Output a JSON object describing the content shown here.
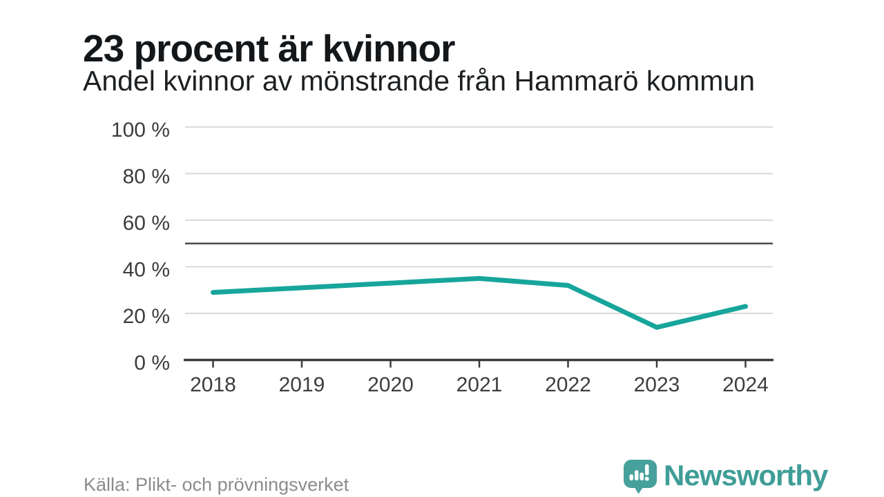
{
  "header": {
    "title": "23 procent är kvinnor",
    "subtitle": "Andel kvinnor av mönstrande från Hammarö kommun"
  },
  "chart_data": {
    "type": "line",
    "title": "23 procent är kvinnor",
    "subtitle": "Andel kvinnor av mönstrande från Hammarö kommun",
    "x_tick_labels": [
      "2018",
      "2019",
      "2020",
      "2021",
      "2022",
      "2023",
      "2024"
    ],
    "values": [
      29,
      31,
      33,
      35,
      32,
      14,
      23
    ],
    "unit": "%",
    "ylim": [
      0,
      100
    ],
    "y_ticks": [
      0,
      20,
      40,
      60,
      80,
      100
    ],
    "y_tick_labels": [
      "0 %",
      "20 %",
      "40 %",
      "60 %",
      "80 %",
      "100 %"
    ],
    "reference_line_value": 50,
    "grid": "horizontal",
    "legend": "none",
    "line_color": "#17a59b"
  },
  "footer": {
    "source": "Källa: Plikt- och prövningsverket",
    "brand": "Newsworthy",
    "brand_color": "#3f9d97",
    "brand_icon": "bar-chart-speech-bubble-icon"
  }
}
